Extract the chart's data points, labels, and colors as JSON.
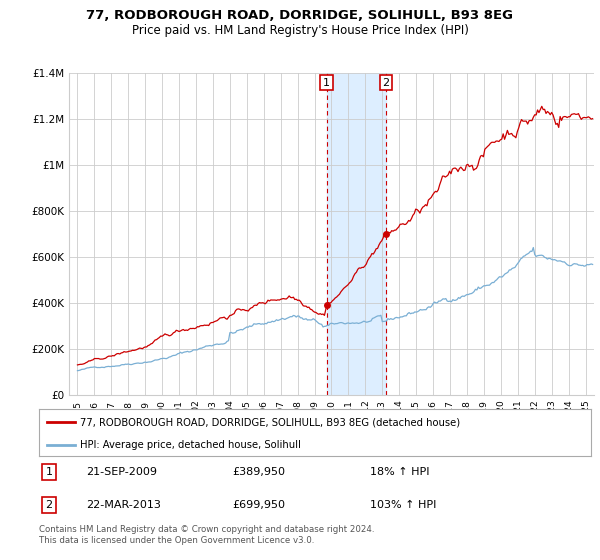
{
  "title": "77, RODBOROUGH ROAD, DORRIDGE, SOLIHULL, B93 8EG",
  "subtitle": "Price paid vs. HM Land Registry's House Price Index (HPI)",
  "legend_line1": "77, RODBOROUGH ROAD, DORRIDGE, SOLIHULL, B93 8EG (detached house)",
  "legend_line2": "HPI: Average price, detached house, Solihull",
  "footer": "Contains HM Land Registry data © Crown copyright and database right 2024.\nThis data is licensed under the Open Government Licence v3.0.",
  "note1_num": "1",
  "note1_date": "21-SEP-2009",
  "note1_price": "£389,950",
  "note1_hpi": "18% ↑ HPI",
  "note2_num": "2",
  "note2_date": "22-MAR-2013",
  "note2_price": "£699,950",
  "note2_hpi": "103% ↑ HPI",
  "red_color": "#cc0000",
  "blue_color": "#7aafd4",
  "shading_color": "#ddeeff",
  "background_color": "#ffffff",
  "grid_color": "#cccccc",
  "ylim": [
    0,
    1400000
  ],
  "yticks": [
    0,
    200000,
    400000,
    600000,
    800000,
    1000000,
    1200000,
    1400000
  ],
  "ytick_labels": [
    "£0",
    "£200K",
    "£400K",
    "£600K",
    "£800K",
    "£1M",
    "£1.2M",
    "£1.4M"
  ],
  "sale1_x": 2009.72,
  "sale1_price": 389950,
  "sale2_x": 2013.22,
  "sale2_price": 699950,
  "xlim_left": 1994.5,
  "xlim_right": 2025.5
}
